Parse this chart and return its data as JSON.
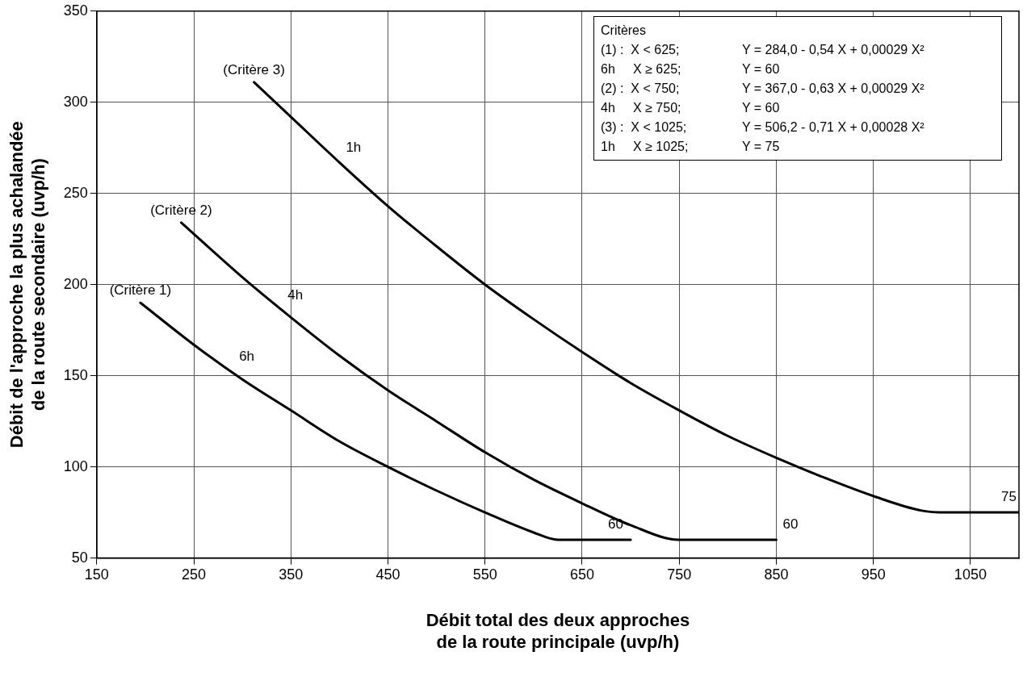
{
  "chart_data": {
    "type": "line",
    "xlabel": "Débit total des deux approches\nde la route principale (uvp/h)",
    "ylabel": "Débit de l'approche la plus achalandée\nde la route secondaire (uvp/h)",
    "xlim": [
      150,
      1100
    ],
    "xticks": [
      150,
      250,
      350,
      450,
      550,
      650,
      750,
      850,
      950,
      1050
    ],
    "ylim": [
      50,
      350
    ],
    "yticks": [
      50,
      100,
      150,
      200,
      250,
      300,
      350
    ],
    "grid": true,
    "legend": false,
    "marker": "none",
    "line_style": "solid",
    "series": [
      {
        "color": "#000000",
        "x": [
          195,
          250,
          300,
          350,
          400,
          450,
          500,
          550,
          600,
          625,
          700
        ],
        "values": [
          190,
          167,
          148,
          131,
          114,
          100,
          87,
          75,
          64,
          60,
          60
        ]
      },
      {
        "color": "#000000",
        "x": [
          237,
          300,
          350,
          400,
          450,
          500,
          550,
          600,
          650,
          700,
          750,
          850
        ],
        "values": [
          234,
          204,
          182,
          161,
          142,
          125,
          108,
          93,
          80,
          68,
          60,
          60
        ]
      },
      {
        "color": "#000000",
        "x": [
          312,
          350,
          400,
          450,
          500,
          550,
          600,
          650,
          700,
          750,
          800,
          850,
          900,
          950,
          1000,
          1025,
          1100
        ],
        "values": [
          311,
          292,
          267,
          243,
          221,
          200,
          181,
          163,
          146,
          131,
          117,
          105,
          94,
          84,
          76,
          75,
          75
        ]
      }
    ],
    "annotations": [
      {
        "text": "(Critère 1)",
        "x": 195,
        "y": 190
      },
      {
        "text": "6h",
        "x": 290,
        "y": 152
      },
      {
        "text": "60",
        "x": 670,
        "y": 60
      },
      {
        "text": "(Critère 2)",
        "x": 237,
        "y": 234
      },
      {
        "text": "4h",
        "x": 340,
        "y": 186
      },
      {
        "text": "60",
        "x": 850,
        "y": 60
      },
      {
        "text": "(Critère 3)",
        "x": 312,
        "y": 311
      },
      {
        "text": "1h",
        "x": 400,
        "y": 267
      },
      {
        "text": "75",
        "x": 1075,
        "y": 75
      },
      "Critères",
      "(1) :  X < 625;",
      "Y = 284,0 - 0,54 X + 0,00029 X²",
      "6h     X ≥ 625;",
      "Y = 60",
      "(2) :  X < 750;",
      "Y = 367,0 - 0,63 X + 0,00029 X²",
      "4h     X ≥ 750;",
      "Y = 60",
      "(3) :  X < 1025;",
      "Y = 506,2 - 0,71 X + 0,00028 X²",
      "1h     X ≥ 1025;",
      "Y = 75"
    ]
  }
}
